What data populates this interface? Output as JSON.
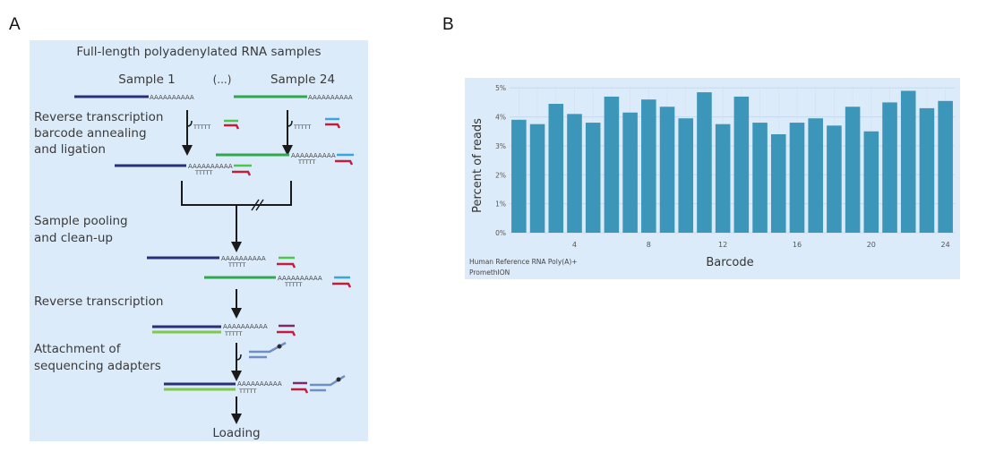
{
  "panel_labels": {
    "a": "A",
    "b": "B"
  },
  "workflow": {
    "title": "Full-length polyadenylated RNA samples",
    "sample_left": "Sample 1",
    "ellipsis": "(...)",
    "sample_right": "Sample 24",
    "polya": "AAAAAAAAAA",
    "oligo_t": "TTTTT",
    "steps": {
      "rt_barcode": [
        "Reverse transcription",
        "barcode annealing",
        "and ligation"
      ],
      "pooling": [
        "Sample pooling",
        "and clean-up"
      ],
      "rt": [
        "Reverse transcription"
      ],
      "adapters": [
        "Attachment of",
        "sequencing adapters"
      ]
    },
    "loading": "Loading",
    "colors": {
      "rna_dark": "#2b2e7a",
      "rna_green": "#2fa84f",
      "barcode_green": "#4cc64c",
      "barcode_blue": "#3aa6dc",
      "red": "#c21d3d",
      "cdna_green": "#7ec84a",
      "adapter_blue": "#6f8fc4",
      "purple": "#7a2a6a"
    }
  },
  "chart_data": {
    "type": "bar",
    "categories": [
      "1",
      "2",
      "3",
      "4",
      "5",
      "6",
      "7",
      "8",
      "9",
      "10",
      "11",
      "12",
      "13",
      "14",
      "15",
      "16",
      "17",
      "18",
      "19",
      "20",
      "21",
      "22",
      "23",
      "24"
    ],
    "values": [
      3.9,
      3.75,
      4.45,
      4.1,
      3.8,
      4.7,
      4.15,
      4.6,
      4.35,
      3.95,
      4.85,
      3.75,
      4.7,
      3.8,
      3.4,
      3.8,
      3.95,
      3.7,
      4.35,
      3.5,
      4.5,
      4.9,
      4.3,
      4.55
    ],
    "xticks": [
      "4",
      "8",
      "12",
      "16",
      "20",
      "24"
    ],
    "xtick_values": [
      4,
      8,
      12,
      16,
      20,
      24
    ],
    "yticks": [
      "0%",
      "1%",
      "2%",
      "3%",
      "4%",
      "5%"
    ],
    "ytick_values": [
      0,
      1,
      2,
      3,
      4,
      5
    ],
    "xlabel": "Barcode",
    "ylabel": "Percent of reads",
    "ylim": [
      0,
      5.1
    ],
    "grid": true,
    "bar_color": "#3b96ba",
    "caption_line1": "Human Reference RNA Poly(A)+",
    "caption_line2": "PromethION"
  }
}
